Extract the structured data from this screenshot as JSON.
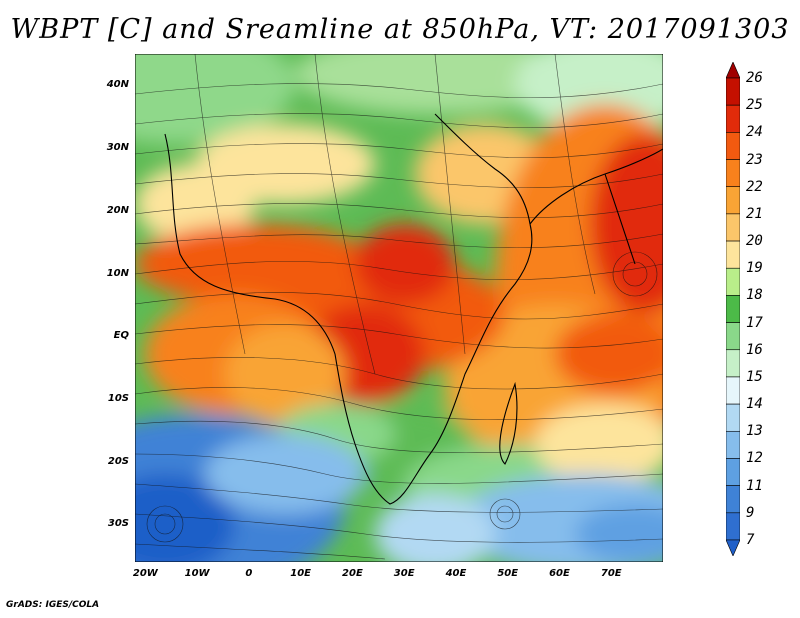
{
  "title": "WBPT [C] and Sreamline at 850hPa, VT: 2017091303",
  "credit": "GrADS: IGES/COLA",
  "map": {
    "lat_range": [
      -36,
      45
    ],
    "lon_range": [
      -22,
      80
    ],
    "y_ticks": [
      "40N",
      "30N",
      "20N",
      "10N",
      "EQ",
      "10S",
      "20S",
      "30S"
    ],
    "x_ticks": [
      "20W",
      "10W",
      "0",
      "10E",
      "20E",
      "30E",
      "40E",
      "50E",
      "60E",
      "70E"
    ]
  },
  "colorbar": {
    "labels": [
      "26",
      "25",
      "24",
      "23",
      "22",
      "21",
      "20",
      "19",
      "18",
      "17",
      "16",
      "15",
      "14",
      "13",
      "12",
      "11",
      "9",
      "7"
    ],
    "colors": [
      "#a00000",
      "#c41000",
      "#e12b0a",
      "#f25a10",
      "#f8811c",
      "#f9a435",
      "#fbc66a",
      "#fde49c",
      "#b9ee8a",
      "#4cba48",
      "#8ad88a",
      "#c6f0c8",
      "#e6f6fb",
      "#b2d9f3",
      "#86bdec",
      "#5ea0e2",
      "#3f82d6",
      "#2f6fd0",
      "#1f5fc8"
    ]
  }
}
